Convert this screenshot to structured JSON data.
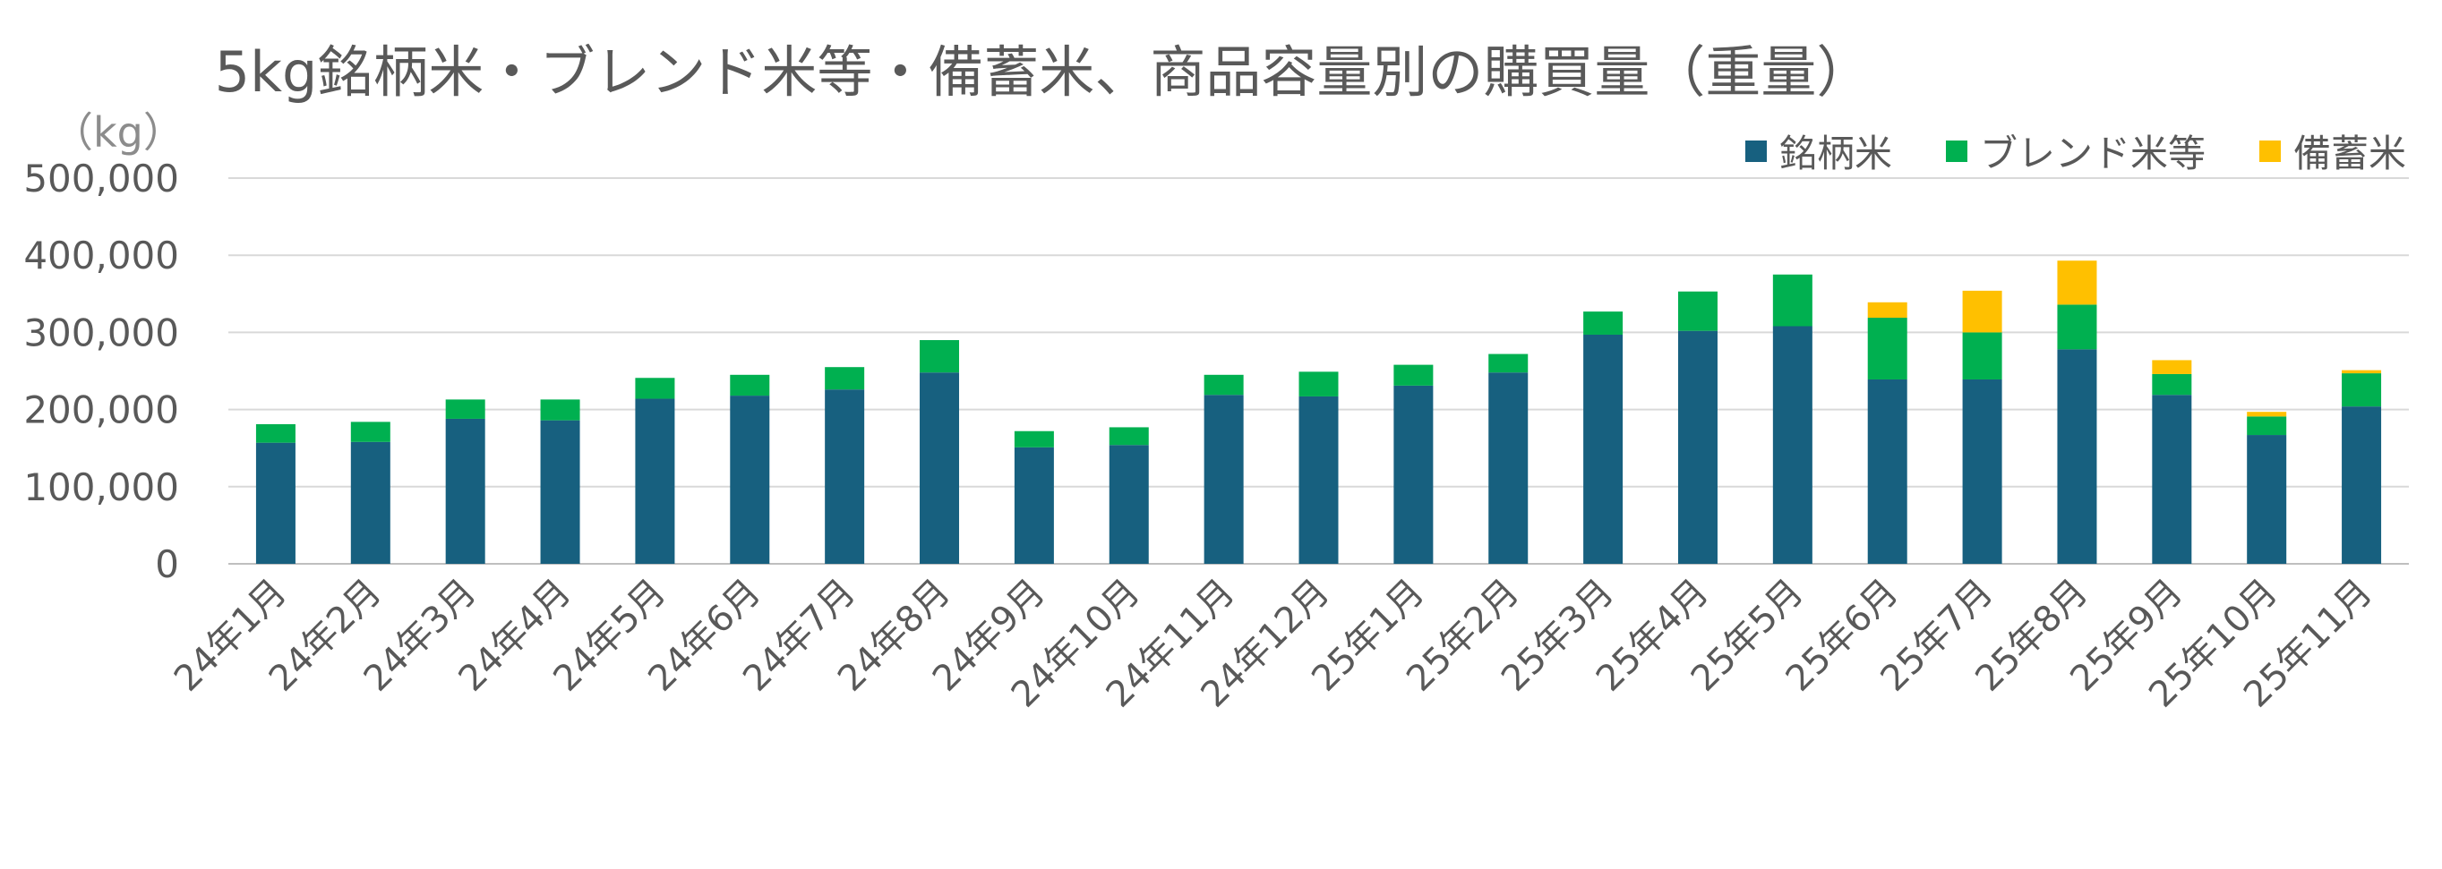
{
  "chart_data": {
    "type": "bar",
    "stacked": true,
    "title": "5kg銘柄米・ブレンド米等・備蓄米、商品容量別の購買量（重量）",
    "unit": "（kg）",
    "categories": [
      "24年1月",
      "24年2月",
      "24年3月",
      "24年4月",
      "24年5月",
      "24年6月",
      "24年7月",
      "24年8月",
      "24年9月",
      "24年10月",
      "24年11月",
      "24年12月",
      "25年1月",
      "25年2月",
      "25年3月",
      "25年4月",
      "25年5月",
      "25年6月",
      "25年7月",
      "25年8月",
      "25年9月",
      "25年10月",
      "25年11月"
    ],
    "series": [
      {
        "name": "銘柄米",
        "color": "#17607f",
        "values": [
          157000,
          158000,
          188000,
          186000,
          214000,
          218000,
          226000,
          248000,
          151000,
          154000,
          219000,
          217000,
          231000,
          248000,
          297000,
          302000,
          308000,
          239000,
          239000,
          278000,
          219000,
          167000,
          204000
        ]
      },
      {
        "name": "ブレンド米等",
        "color": "#00b050",
        "values": [
          24000,
          26000,
          25000,
          27000,
          27000,
          27000,
          29000,
          42000,
          21000,
          23000,
          26000,
          32000,
          27000,
          24000,
          30000,
          51000,
          67000,
          80000,
          61000,
          58000,
          27000,
          24000,
          43000
        ]
      },
      {
        "name": "備蓄米",
        "color": "#ffc000",
        "values": [
          0,
          0,
          0,
          0,
          0,
          0,
          0,
          0,
          0,
          0,
          0,
          0,
          0,
          0,
          0,
          0,
          0,
          20000,
          54000,
          57000,
          18000,
          6000,
          4000
        ]
      }
    ],
    "ylim": [
      0,
      500000
    ],
    "yticks": [
      "0",
      "100,000",
      "200,000",
      "300,000",
      "400,000",
      "500,000"
    ],
    "grid": true,
    "legend_position": "top-right"
  }
}
